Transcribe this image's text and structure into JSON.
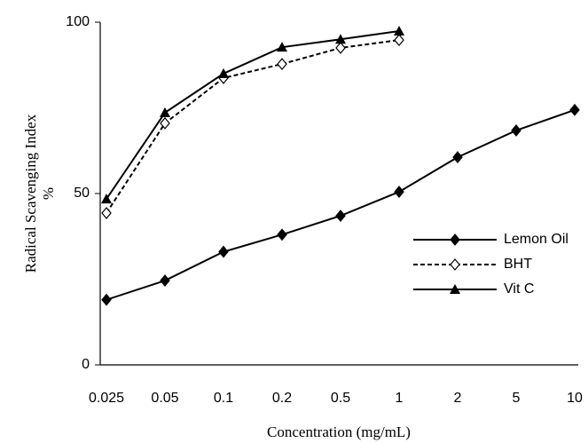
{
  "chart_data": {
    "type": "line",
    "ylabel": [
      "Radical Scavenging Index",
      "%"
    ],
    "xlabel": "Concentration (mg/mL)",
    "categories": [
      "0.025",
      "0.05",
      "0.1",
      "0.2",
      "0.5",
      "1",
      "2",
      "5",
      "10"
    ],
    "series": [
      {
        "name": "Lemon Oil",
        "color": "#000000",
        "marker": "diamond",
        "dash": false,
        "values": [
          19,
          24.6,
          33,
          38,
          43.5,
          50.5,
          60.6,
          68.4,
          74.4
        ]
      },
      {
        "name": "BHT",
        "color": "#000000",
        "marker": "open-diamond",
        "dash": true,
        "values": [
          44.3,
          70.5,
          83.7,
          87.8,
          92.5,
          94.8,
          null,
          null,
          null
        ]
      },
      {
        "name": "Vit C",
        "color": "#000000",
        "marker": "triangle",
        "dash": false,
        "values": [
          48.4,
          73.6,
          85,
          92.7,
          95,
          97.4,
          null,
          null,
          null
        ]
      }
    ],
    "ylim": [
      0,
      100
    ],
    "yticks": [
      0,
      50,
      100
    ],
    "grid": false,
    "legend": "lower right"
  }
}
